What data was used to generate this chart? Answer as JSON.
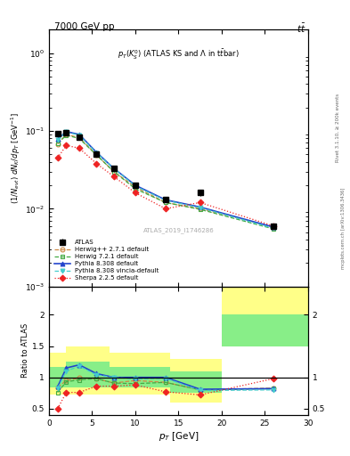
{
  "title_left": "7000 GeV pp",
  "title_right": "t$\\bar{t}$",
  "subtitle": "p$_{T}$(K$^{0}_{S}$) (ATLAS KS and $\\Lambda$ in t$\\bar{t}$bar)",
  "watermark": "ATLAS_2019_I1746286",
  "rivet_label": "Rivet 3.1.10, ≥ 200k events",
  "mcplots_label": "mcplots.cern.ch [arXiv:1306.3436]",
  "xlabel": "p$_{T}$ [GeV]",
  "ylabel": "(1/N$_{evt}$) dN$_{K}$/dp$_{T}$ [GeV$^{-1}$]",
  "ylabel_ratio": "Ratio to ATLAS",
  "xlim": [
    0,
    30
  ],
  "ylim_main_lo": 0.001,
  "ylim_main_hi": 2.0,
  "ylim_ratio_lo": 0.4,
  "ylim_ratio_hi": 2.45,
  "atlas_pt": [
    1.0,
    2.0,
    3.5,
    5.5,
    7.5,
    10.0,
    13.5,
    17.5,
    26.0
  ],
  "atlas_val": [
    0.093,
    0.095,
    0.083,
    0.05,
    0.033,
    0.02,
    0.013,
    0.016,
    0.006
  ],
  "atlas_err": [
    0.006,
    0.006,
    0.005,
    0.003,
    0.002,
    0.0015,
    0.001,
    0.0015,
    0.0005
  ],
  "herwig_pp_val": [
    0.068,
    0.09,
    0.082,
    0.049,
    0.03,
    0.019,
    0.012,
    0.01,
    0.0058
  ],
  "herwig_72_val": [
    0.069,
    0.088,
    0.08,
    0.049,
    0.03,
    0.018,
    0.012,
    0.0098,
    0.0055
  ],
  "pythia_308_val": [
    0.078,
    0.098,
    0.09,
    0.053,
    0.033,
    0.02,
    0.013,
    0.0105,
    0.0058
  ],
  "pythia_vin_val": [
    0.077,
    0.097,
    0.088,
    0.052,
    0.033,
    0.0195,
    0.0128,
    0.0103,
    0.0056
  ],
  "sherpa_val": [
    0.045,
    0.065,
    0.06,
    0.038,
    0.026,
    0.016,
    0.01,
    0.012,
    0.006
  ],
  "ratio_herwig_pp": [
    0.84,
    0.95,
    0.99,
    0.98,
    0.91,
    0.95,
    0.92,
    0.8,
    0.83
  ],
  "ratio_herwig_72": [
    0.76,
    0.93,
    0.96,
    0.98,
    0.91,
    0.9,
    0.92,
    0.8,
    0.82
  ],
  "ratio_pythia_308": [
    0.85,
    1.15,
    1.2,
    1.06,
    1.0,
    1.0,
    1.0,
    0.81,
    0.82
  ],
  "ratio_pythia_vin": [
    0.83,
    1.1,
    1.18,
    1.04,
    1.0,
    0.975,
    0.985,
    0.79,
    0.8
  ],
  "ratio_sherpa": [
    0.5,
    0.76,
    0.76,
    0.86,
    0.86,
    0.88,
    0.77,
    0.72,
    0.98
  ],
  "band_yellow_edges": [
    0,
    2,
    7,
    14,
    20,
    30
  ],
  "band_yellow_lo": [
    0.72,
    0.72,
    0.72,
    0.6,
    2.0,
    2.0
  ],
  "band_yellow_hi": [
    1.4,
    1.5,
    1.4,
    1.3,
    2.45,
    2.45
  ],
  "band_green_edges": [
    0,
    2,
    7,
    14,
    20,
    30
  ],
  "band_green_lo": [
    0.84,
    0.84,
    0.84,
    0.75,
    1.5,
    1.5
  ],
  "band_green_hi": [
    1.16,
    1.25,
    1.16,
    1.1,
    2.0,
    2.0
  ],
  "color_atlas": "#000000",
  "color_herwig_pp": "#cc8844",
  "color_herwig_72": "#44aa44",
  "color_pythia_308": "#2244cc",
  "color_pythia_vin": "#44cccc",
  "color_sherpa": "#ee2222",
  "color_yellow": "#ffff88",
  "color_green": "#88ee88"
}
